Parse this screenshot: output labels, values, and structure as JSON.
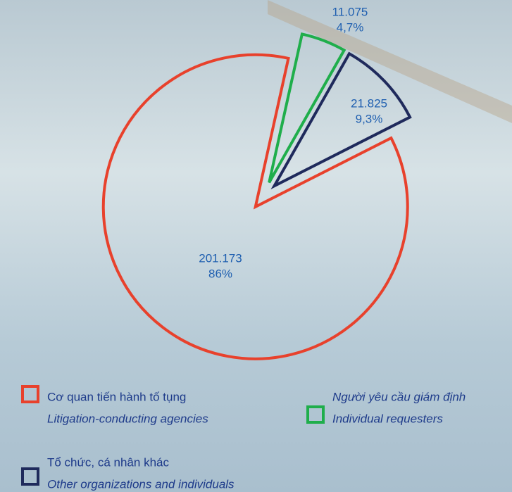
{
  "chart_data": {
    "type": "pie",
    "categories": [
      "Người yêu cầu giám định",
      "Tổ chức, cá nhân khác",
      "Cơ quan tiến hành tố tụng"
    ],
    "categories_en": [
      "Individual requesters",
      "Other organizations and individuals",
      "Litigation-conducting agencies"
    ],
    "values": [
      11075,
      21825,
      201173
    ],
    "value_labels": [
      "11.075",
      "21.825",
      "201.173"
    ],
    "percentages": [
      4.7,
      9.3,
      86
    ],
    "percentage_labels": [
      "4,7%",
      "9,3%",
      "86%"
    ],
    "colors": [
      "#1fae4b",
      "#1f2a5c",
      "#e8412c"
    ]
  }
}
